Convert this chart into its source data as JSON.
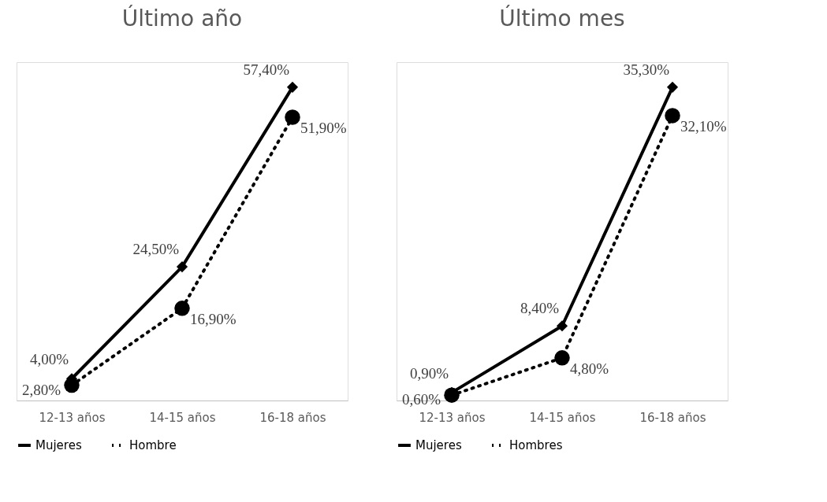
{
  "chart_data": [
    {
      "type": "line",
      "title": "Último año",
      "categories": [
        "12-13 años",
        "14-15 años",
        "16-18 años"
      ],
      "legend": "bottom",
      "grid": false,
      "series": [
        {
          "name": "Mujeres",
          "color": "#000000",
          "values": [
            4.0,
            24.5,
            57.4
          ],
          "value_labels": [
            "4,00%",
            "24,50%",
            "57,40%"
          ],
          "marker": "diamond",
          "line_style": "solid"
        },
        {
          "name": "Hombre",
          "color": "#000000",
          "values": [
            2.8,
            16.9,
            51.9
          ],
          "value_labels": [
            "2,80%",
            "16,90%",
            "51,90%"
          ],
          "marker": "circle",
          "line_style": "dotted"
        }
      ]
    },
    {
      "type": "line",
      "title": "Último mes",
      "categories": [
        "12-13 años",
        "14-15 años",
        "16-18 años"
      ],
      "legend": "bottom",
      "grid": false,
      "series": [
        {
          "name": "Mujeres",
          "color": "#000000",
          "values": [
            0.9,
            8.4,
            35.3
          ],
          "value_labels": [
            "0,90%",
            "8,40%",
            "35,30%"
          ],
          "marker": "diamond",
          "line_style": "solid"
        },
        {
          "name": "Hombres",
          "color": "#000000",
          "values": [
            0.6,
            4.8,
            32.1
          ],
          "value_labels": [
            "0,60%",
            "4,80%",
            "32,10%"
          ],
          "marker": "circle",
          "line_style": "dotted"
        }
      ]
    }
  ]
}
